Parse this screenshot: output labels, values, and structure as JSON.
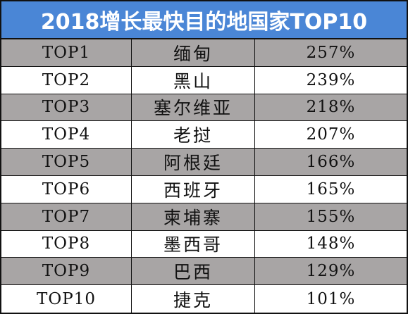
{
  "title": "2018增长最快目的地国家TOP10",
  "colors": {
    "title_background": "#4a86d6",
    "title_text": "#ffffff",
    "shaded_row": "#a8a5a5",
    "plain_row": "#ffffff",
    "border": "#111111"
  },
  "rows": [
    {
      "rank": "TOP1",
      "country": "缅甸",
      "growth": "257%"
    },
    {
      "rank": "TOP2",
      "country": "黑山",
      "growth": "239%"
    },
    {
      "rank": "TOP3",
      "country": "塞尔维亚",
      "growth": "218%"
    },
    {
      "rank": "TOP4",
      "country": "老挝",
      "growth": "207%"
    },
    {
      "rank": "TOP5",
      "country": "阿根廷",
      "growth": "166%"
    },
    {
      "rank": "TOP6",
      "country": "西班牙",
      "growth": "165%"
    },
    {
      "rank": "TOP7",
      "country": "柬埔寨",
      "growth": "155%"
    },
    {
      "rank": "TOP8",
      "country": "墨西哥",
      "growth": "148%"
    },
    {
      "rank": "TOP9",
      "country": "巴西",
      "growth": "129%"
    },
    {
      "rank": "TOP10",
      "country": "捷克",
      "growth": "101%"
    }
  ]
}
